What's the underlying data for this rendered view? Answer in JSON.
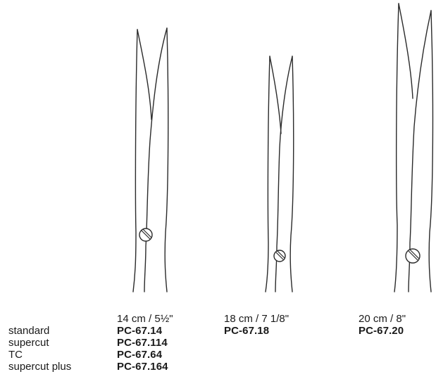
{
  "products": [
    {
      "size": "14 cm / 5½\"",
      "code": "PC-67.14"
    },
    {
      "size": "18 cm / 7 1/8\"",
      "code": "PC-67.18"
    },
    {
      "size": "20 cm / 8\"",
      "code": "PC-67.20"
    }
  ],
  "variants": [
    {
      "name": "standard",
      "code": "PC-67.14"
    },
    {
      "name": "supercut",
      "code": "PC-67.114"
    },
    {
      "name": "TC",
      "code": "PC-67.64"
    },
    {
      "name": "supercut plus",
      "code": "PC-67.164"
    }
  ]
}
